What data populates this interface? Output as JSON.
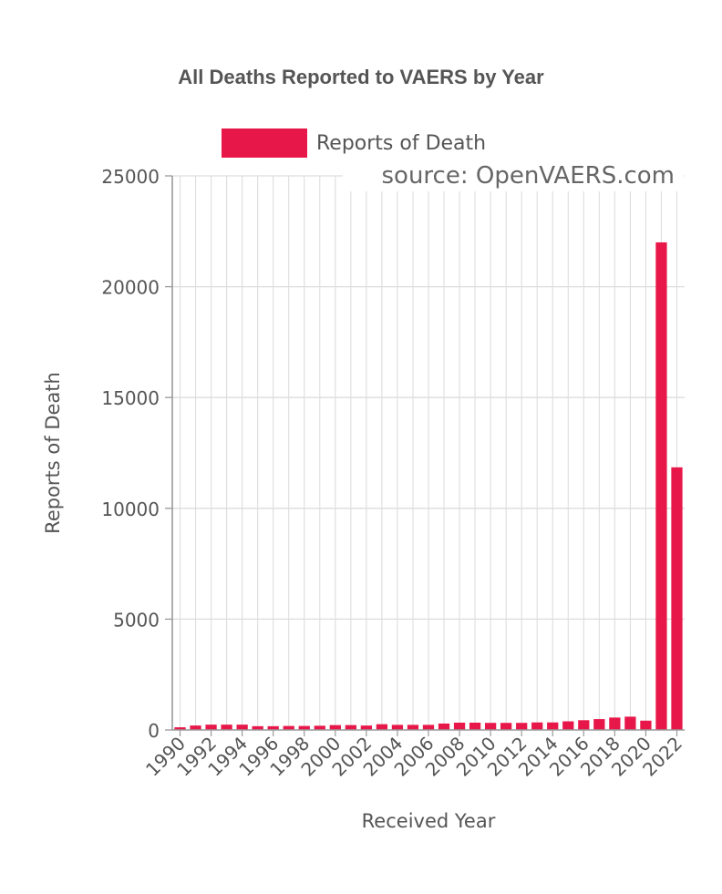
{
  "chart_data": {
    "type": "bar",
    "title": "All Deaths Reported to VAERS by Year",
    "xlabel": "Received Year",
    "ylabel": "Reports of Death",
    "ylim": [
      0,
      25000
    ],
    "yticks": [
      "0",
      "5000",
      "10000",
      "15000",
      "20000",
      "25000"
    ],
    "categories": [
      "1990",
      "1991",
      "1992",
      "1993",
      "1994",
      "1995",
      "1996",
      "1997",
      "1998",
      "1999",
      "2000",
      "2001",
      "2002",
      "2003",
      "2004",
      "2005",
      "2006",
      "2007",
      "2008",
      "2009",
      "2010",
      "2011",
      "2012",
      "2013",
      "2014",
      "2015",
      "2016",
      "2017",
      "2018",
      "2019",
      "2020",
      "2021",
      "2022"
    ],
    "xtick_labels": [
      "1990",
      "1992",
      "1994",
      "1996",
      "1998",
      "2000",
      "2002",
      "2004",
      "2006",
      "2008",
      "2010",
      "2012",
      "2014",
      "2016",
      "2018",
      "2020",
      "2022"
    ],
    "series": [
      {
        "name": "Reports of Death",
        "color": "#e8174a",
        "values": [
          120,
          200,
          240,
          240,
          240,
          170,
          170,
          180,
          180,
          190,
          220,
          220,
          200,
          260,
          230,
          230,
          230,
          290,
          330,
          330,
          320,
          320,
          320,
          340,
          340,
          390,
          440,
          490,
          560,
          600,
          420,
          22000,
          11850
        ]
      }
    ],
    "legend": {
      "position": "top",
      "label": "Reports of Death"
    },
    "source_note": "source: OpenVAERS.com",
    "grid": true
  },
  "colors": {
    "bar": "#e8174a",
    "grid": "#dddddd",
    "axis": "#999999",
    "text": "#555555"
  }
}
